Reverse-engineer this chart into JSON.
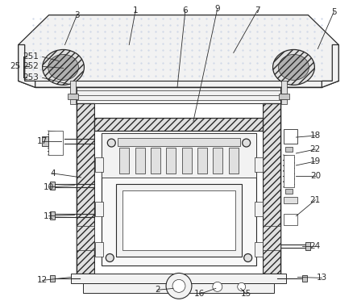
{
  "bg_color": "#ffffff",
  "line_color": "#2a2a2a",
  "fill_light": "#f2f2f2",
  "fill_mid": "#e0e0e0",
  "fill_dark": "#c8c8c8",
  "fill_hatch": "#d8d8d8",
  "dot_color": "#cccccc",
  "label_fs": 7.5,
  "lw_main": 0.9,
  "lw_thin": 0.5
}
